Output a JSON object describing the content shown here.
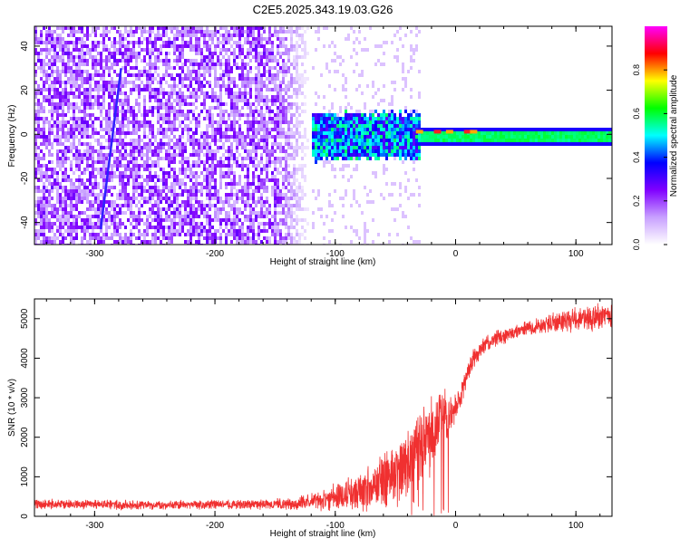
{
  "figure": {
    "title": "C2E5.2025.343.19.03.G26"
  },
  "colors": {
    "snr_line": "#f03030",
    "axis": "#000000",
    "background": "#ffffff"
  },
  "chart_data": [
    {
      "type": "heatmap",
      "xlabel": "Height of straight line (km)",
      "ylabel": "Frequency (Hz)",
      "xlim": [
        -350,
        130
      ],
      "ylim": [
        -50,
        49
      ],
      "xticks": [
        -300,
        -200,
        -100,
        0,
        100
      ],
      "xtick_labels": [
        "-300",
        "-200",
        "-100",
        "0",
        "100"
      ],
      "yticks": [
        -40,
        -20,
        0,
        20,
        40
      ],
      "ytick_labels": [
        "-40",
        "-20",
        "0",
        "20",
        "40"
      ],
      "colorbar": {
        "label": "Normalized spectral amplitude",
        "range": [
          0,
          1
        ],
        "ticks": [
          0,
          0.2,
          0.4,
          0.6,
          0.8
        ],
        "tick_labels": [
          "0.0",
          "0.2",
          "0.4",
          "0.6",
          "0.8"
        ],
        "colormap": [
          "#ffffff",
          "#c8a0ff",
          "#8000ff",
          "#0000ff",
          "#00ffff",
          "#00ff00",
          "#ffff00",
          "#ff0000",
          "#ff00ff"
        ]
      },
      "features": {
        "noise_region_x": [
          -350,
          -120
        ],
        "noise_level": 0.25,
        "transition_x": [
          -130,
          -30
        ],
        "carrier_x": [
          -30,
          130
        ],
        "carrier_freq_hz": 0,
        "carrier_level": 0.55,
        "streak": {
          "x_start": -278,
          "y_start": 30,
          "x_end": -295,
          "y_end": -43
        }
      }
    },
    {
      "type": "line",
      "xlabel": "Height of straight line (km)",
      "ylabel": "SNR (10 * v/v)",
      "xlim": [
        -350,
        130
      ],
      "ylim": [
        0,
        5500
      ],
      "xticks": [
        -300,
        -200,
        -100,
        0,
        100
      ],
      "xtick_labels": [
        "-300",
        "-200",
        "-100",
        "0",
        "100"
      ],
      "yticks": [
        0,
        1000,
        2000,
        3000,
        4000,
        5000
      ],
      "ytick_labels": [
        "0",
        "1000",
        "2000",
        "3000",
        "4000",
        "5000"
      ],
      "series": [
        {
          "x": [
            -350,
            -300,
            -250,
            -200,
            -150,
            -130,
            -120,
            -110,
            -100,
            -90,
            -80,
            -70,
            -60,
            -50,
            -40,
            -30,
            -20,
            -15,
            -10,
            -5,
            0,
            5,
            10,
            15,
            20,
            25,
            30,
            40,
            50,
            60,
            70,
            80,
            90,
            100,
            110,
            120,
            130
          ],
          "values": [
            300,
            300,
            280,
            300,
            300,
            330,
            380,
            420,
            500,
            560,
            650,
            760,
            900,
            1100,
            1350,
            1700,
            2100,
            2300,
            2450,
            2500,
            2700,
            3100,
            3600,
            4000,
            4200,
            4350,
            4450,
            4550,
            4650,
            4750,
            4820,
            4900,
            4950,
            5000,
            5030,
            5060,
            5100
          ],
          "noise": [
            120,
            120,
            110,
            110,
            130,
            160,
            200,
            260,
            340,
            400,
            500,
            600,
            700,
            750,
            850,
            950,
            1000,
            900,
            700,
            500,
            350,
            300,
            280,
            260,
            220,
            200,
            200,
            180,
            180,
            180,
            200,
            220,
            260,
            300,
            320,
            350,
            350
          ]
        }
      ]
    }
  ]
}
